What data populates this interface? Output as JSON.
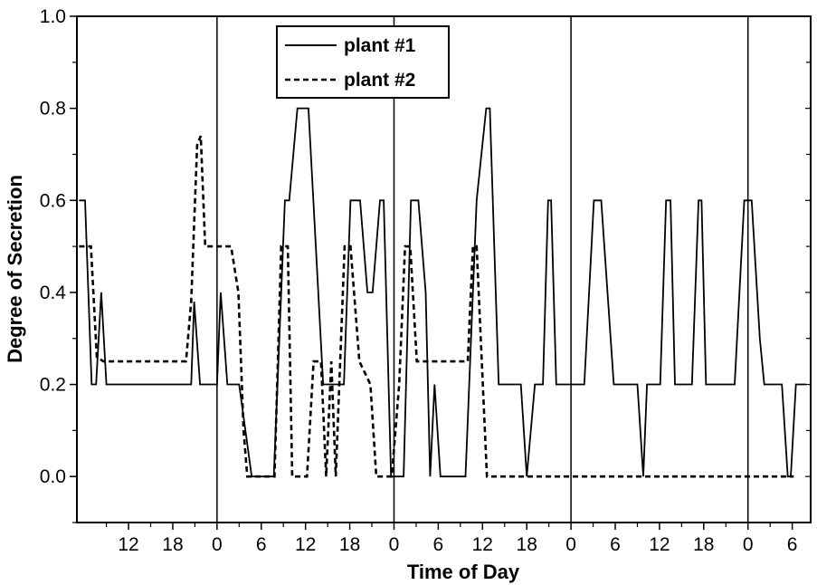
{
  "chart_data": {
    "type": "line",
    "title": "",
    "xlabel": "Time of Day",
    "ylabel": "Degree of Secretion",
    "x_units": "hours since midnight of first day",
    "xlim": [
      5,
      104.5
    ],
    "ylim": [
      -0.1,
      1.0
    ],
    "x_ticks": [
      {
        "x": 12,
        "label": "12"
      },
      {
        "x": 18,
        "label": "18"
      },
      {
        "x": 24,
        "label": "0"
      },
      {
        "x": 30,
        "label": "6"
      },
      {
        "x": 36,
        "label": "12"
      },
      {
        "x": 42,
        "label": "18"
      },
      {
        "x": 48,
        "label": "0"
      },
      {
        "x": 54,
        "label": "6"
      },
      {
        "x": 60,
        "label": "12"
      },
      {
        "x": 66,
        "label": "18"
      },
      {
        "x": 72,
        "label": "0"
      },
      {
        "x": 78,
        "label": "6"
      },
      {
        "x": 84,
        "label": "12"
      },
      {
        "x": 90,
        "label": "18"
      },
      {
        "x": 96,
        "label": "0"
      },
      {
        "x": 102,
        "label": "6"
      }
    ],
    "y_ticks": [
      {
        "y": 0.0,
        "label": "0.0"
      },
      {
        "y": 0.2,
        "label": "0.2"
      },
      {
        "y": 0.4,
        "label": "0.4"
      },
      {
        "y": 0.6,
        "label": "0.6"
      },
      {
        "y": 0.8,
        "label": "0.8"
      },
      {
        "y": 1.0,
        "label": "1.0"
      }
    ],
    "day_boundaries": [
      24,
      48,
      72,
      96
    ],
    "legend_position": "top-center",
    "series": [
      {
        "name": "plant #1",
        "style": "solid",
        "color": "#000000",
        "points": [
          [
            5.3,
            0.6
          ],
          [
            6.1,
            0.6
          ],
          [
            7.0,
            0.2
          ],
          [
            7.6,
            0.2
          ],
          [
            8.3,
            0.4
          ],
          [
            9.0,
            0.2
          ],
          [
            20.5,
            0.2
          ],
          [
            20.9,
            0.38
          ],
          [
            21.7,
            0.2
          ],
          [
            24.0,
            0.2
          ],
          [
            24.5,
            0.4
          ],
          [
            25.4,
            0.2
          ],
          [
            27.0,
            0.2
          ],
          [
            28.7,
            0.0
          ],
          [
            31.7,
            0.0
          ],
          [
            33.2,
            0.6
          ],
          [
            33.8,
            0.6
          ],
          [
            34.9,
            0.8
          ],
          [
            36.4,
            0.8
          ],
          [
            38.4,
            0.2
          ],
          [
            41.2,
            0.2
          ],
          [
            42.1,
            0.6
          ],
          [
            43.4,
            0.6
          ],
          [
            44.4,
            0.4
          ],
          [
            45.1,
            0.4
          ],
          [
            46.1,
            0.6
          ],
          [
            46.6,
            0.6
          ],
          [
            47.6,
            0.0
          ],
          [
            49.3,
            0.0
          ],
          [
            50.3,
            0.6
          ],
          [
            51.3,
            0.6
          ],
          [
            52.3,
            0.4
          ],
          [
            52.9,
            0.0
          ],
          [
            53.5,
            0.2
          ],
          [
            54.3,
            0.0
          ],
          [
            57.7,
            0.0
          ],
          [
            59.2,
            0.6
          ],
          [
            60.5,
            0.8
          ],
          [
            61.0,
            0.8
          ],
          [
            62.2,
            0.2
          ],
          [
            65.2,
            0.2
          ],
          [
            66.0,
            0.0
          ],
          [
            67.1,
            0.2
          ],
          [
            68.2,
            0.2
          ],
          [
            68.9,
            0.6
          ],
          [
            69.3,
            0.6
          ],
          [
            70.0,
            0.2
          ],
          [
            73.8,
            0.2
          ],
          [
            75.1,
            0.6
          ],
          [
            76.1,
            0.6
          ],
          [
            77.8,
            0.2
          ],
          [
            80.3,
            0.2
          ],
          [
            81.0,
            0.2
          ],
          [
            81.8,
            0.0
          ],
          [
            82.3,
            0.2
          ],
          [
            84.1,
            0.2
          ],
          [
            84.9,
            0.6
          ],
          [
            85.5,
            0.6
          ],
          [
            86.1,
            0.2
          ],
          [
            88.4,
            0.2
          ],
          [
            89.3,
            0.6
          ],
          [
            89.7,
            0.6
          ],
          [
            90.3,
            0.2
          ],
          [
            94.2,
            0.2
          ],
          [
            95.5,
            0.6
          ],
          [
            96.5,
            0.6
          ],
          [
            97.6,
            0.3
          ],
          [
            98.2,
            0.2
          ],
          [
            100.6,
            0.2
          ],
          [
            101.4,
            0.0
          ],
          [
            101.8,
            0.0
          ],
          [
            102.5,
            0.2
          ],
          [
            103.9,
            0.2
          ]
        ]
      },
      {
        "name": "plant #2",
        "style": "dashed",
        "color": "#000000",
        "points": [
          [
            5.3,
            0.5
          ],
          [
            6.9,
            0.5
          ],
          [
            7.7,
            0.26
          ],
          [
            8.6,
            0.25
          ],
          [
            19.8,
            0.25
          ],
          [
            20.5,
            0.38
          ],
          [
            21.3,
            0.72
          ],
          [
            21.8,
            0.74
          ],
          [
            22.4,
            0.5
          ],
          [
            25.9,
            0.5
          ],
          [
            26.9,
            0.4
          ],
          [
            27.6,
            0.1
          ],
          [
            28.1,
            0.0
          ],
          [
            31.8,
            0.0
          ],
          [
            32.7,
            0.5
          ],
          [
            33.6,
            0.5
          ],
          [
            34.2,
            0.0
          ],
          [
            36.2,
            0.0
          ],
          [
            37.1,
            0.25
          ],
          [
            38.1,
            0.25
          ],
          [
            38.8,
            0.0
          ],
          [
            39.5,
            0.25
          ],
          [
            40.1,
            0.0
          ],
          [
            41.3,
            0.5
          ],
          [
            42.1,
            0.5
          ],
          [
            43.3,
            0.25
          ],
          [
            44.8,
            0.2
          ],
          [
            45.6,
            0.0
          ],
          [
            47.7,
            0.0
          ],
          [
            48.7,
            0.2
          ],
          [
            49.5,
            0.5
          ],
          [
            50.2,
            0.5
          ],
          [
            51.1,
            0.25
          ],
          [
            58.0,
            0.25
          ],
          [
            58.7,
            0.5
          ],
          [
            59.2,
            0.5
          ],
          [
            60.6,
            0.0
          ],
          [
            102.2,
            0.0
          ]
        ]
      }
    ]
  }
}
